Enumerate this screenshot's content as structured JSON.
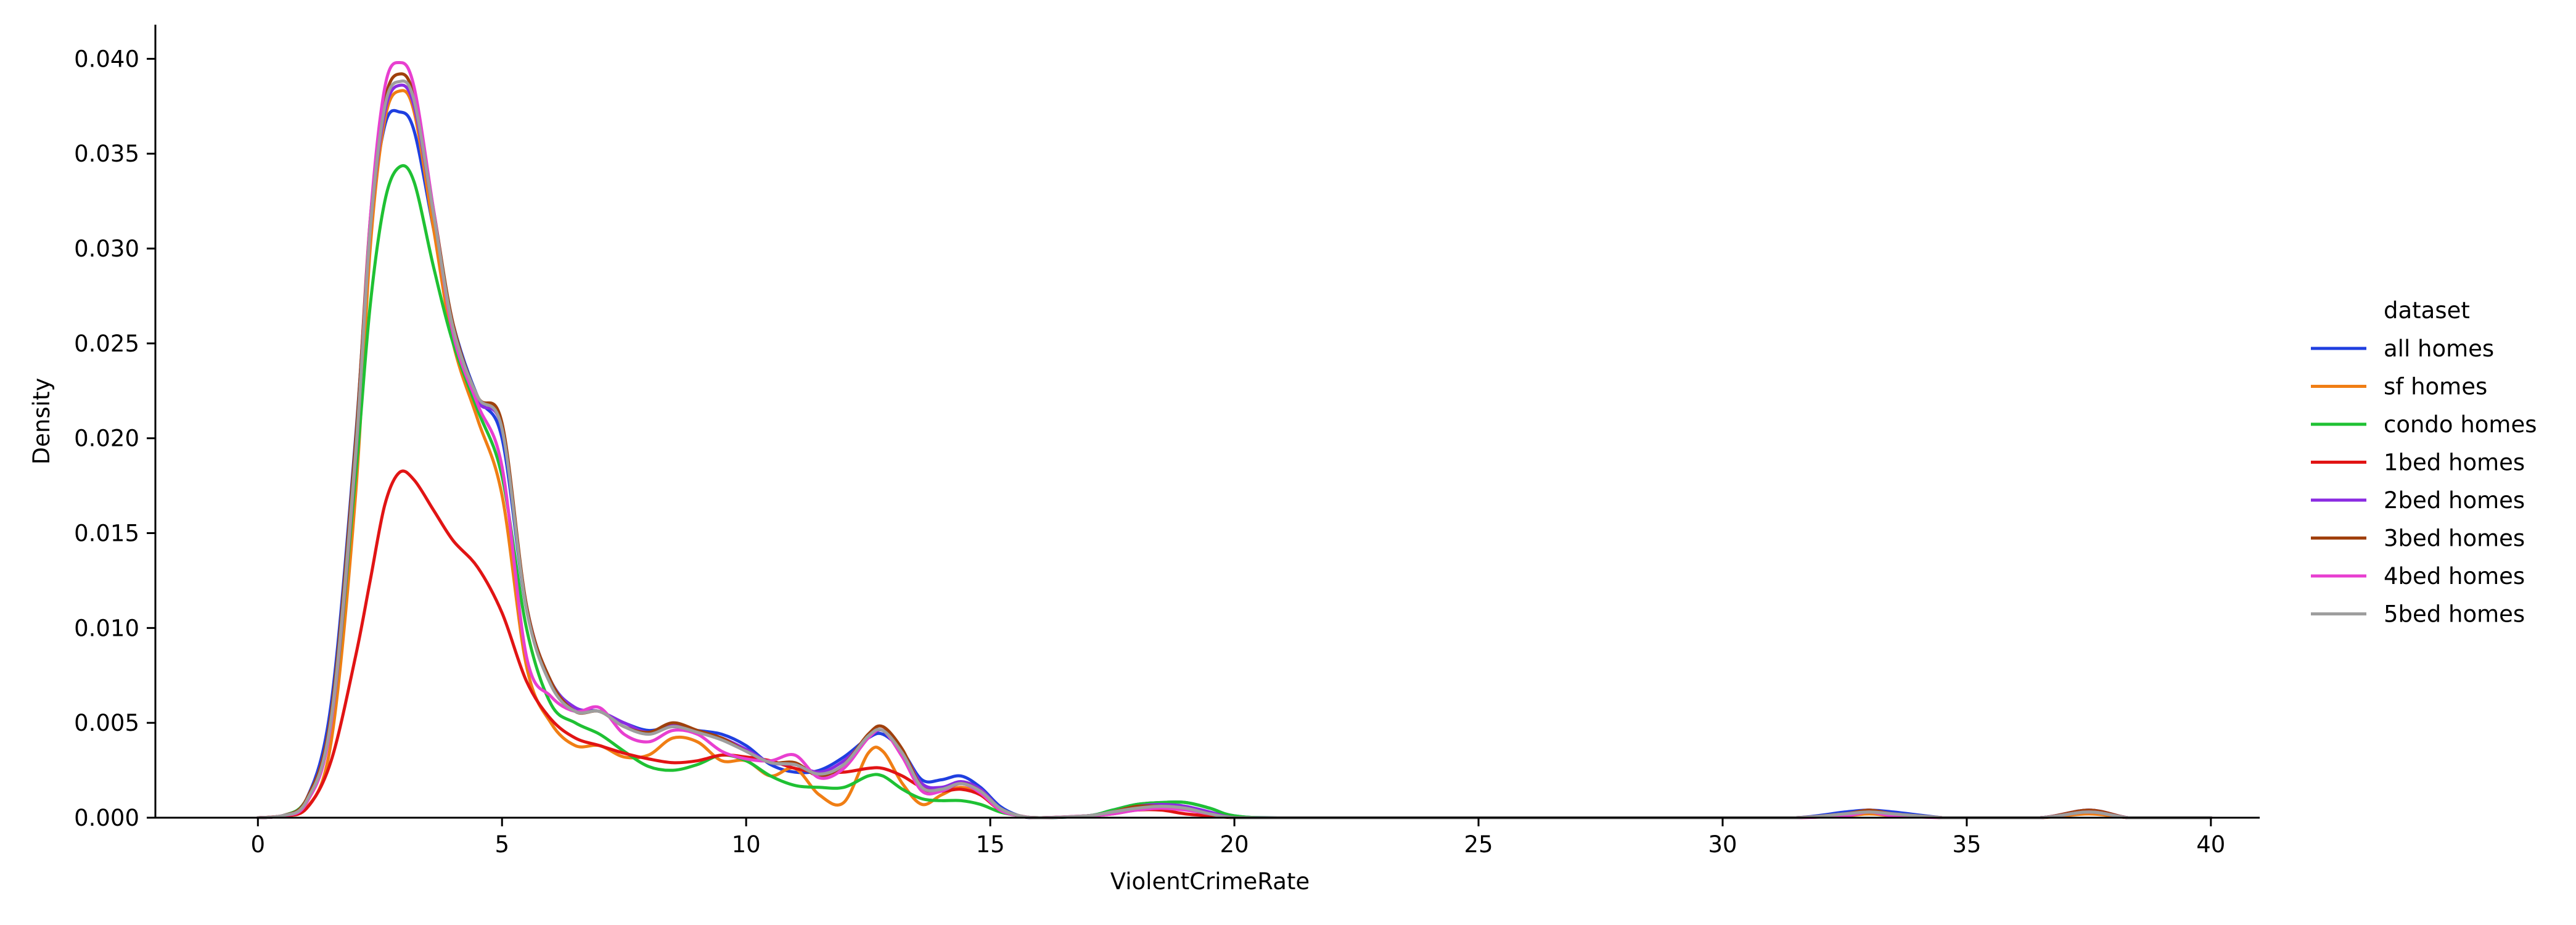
{
  "chart_data": {
    "type": "line",
    "title": "",
    "xlabel": "ViolentCrimeRate",
    "ylabel": "Density",
    "xlim": [
      -2.1,
      41.0
    ],
    "ylim": [
      0,
      0.0418
    ],
    "xticks": [
      0,
      5,
      10,
      15,
      20,
      25,
      30,
      35,
      40
    ],
    "yticks": [
      0.0,
      0.005,
      0.01,
      0.015,
      0.02,
      0.025,
      0.03,
      0.035,
      0.04
    ],
    "ytick_labels": [
      "0.000",
      "0.005",
      "0.010",
      "0.015",
      "0.020",
      "0.025",
      "0.030",
      "0.035",
      "0.040"
    ],
    "grid": false,
    "legend": {
      "title": "dataset",
      "placement": "right-outside"
    },
    "series": [
      {
        "name": "all homes",
        "color": "#1f3fe0",
        "x": [
          0,
          0.5,
          1.0,
          1.5,
          2.0,
          2.3,
          2.6,
          2.9,
          3.2,
          3.6,
          4.0,
          4.5,
          5.0,
          5.5,
          6.0,
          6.5,
          7.0,
          7.5,
          8.0,
          8.5,
          9.0,
          9.5,
          10.0,
          10.5,
          11.0,
          11.5,
          12.0,
          12.5,
          12.8,
          13.2,
          13.6,
          14.0,
          14.4,
          14.8,
          15.2,
          15.6,
          16.0,
          17.0,
          17.5,
          18.0,
          18.5,
          19.0,
          19.5,
          20.0,
          21,
          25,
          30,
          31.5,
          32.5,
          33.0,
          33.5,
          34.5,
          35,
          36.5,
          37.5,
          38.3,
          39,
          40
        ],
        "y": [
          0.0,
          0.0001,
          0.001,
          0.006,
          0.02,
          0.031,
          0.0365,
          0.0372,
          0.0362,
          0.031,
          0.026,
          0.0222,
          0.02,
          0.011,
          0.0072,
          0.0058,
          0.0056,
          0.005,
          0.0046,
          0.0048,
          0.0046,
          0.0044,
          0.0038,
          0.0028,
          0.0024,
          0.0025,
          0.0032,
          0.0042,
          0.0044,
          0.0035,
          0.002,
          0.002,
          0.0022,
          0.0016,
          0.0006,
          0.0001,
          0.0,
          0.0001,
          0.0004,
          0.0007,
          0.0008,
          0.0008,
          0.0005,
          0.0001,
          0.0,
          0.0,
          0.0,
          0.0,
          0.0003,
          0.0004,
          0.0003,
          0.0,
          0.0,
          0.0,
          0.0004,
          0.0,
          0.0,
          0.0
        ]
      },
      {
        "name": "sf homes",
        "color": "#f07e14",
        "x": [
          0,
          0.5,
          1.0,
          1.5,
          2.0,
          2.3,
          2.6,
          2.9,
          3.2,
          3.6,
          4.0,
          4.5,
          5.0,
          5.5,
          6.0,
          6.5,
          7.0,
          7.5,
          8.0,
          8.5,
          9.0,
          9.5,
          10.0,
          10.5,
          11.0,
          11.5,
          12.0,
          12.5,
          12.8,
          13.2,
          13.6,
          14.0,
          14.4,
          14.8,
          15.2,
          15.6,
          16.0,
          17.0,
          17.5,
          18.0,
          18.5,
          19.0,
          19.5,
          20.0,
          21,
          25,
          30,
          31.5,
          32.5,
          33.0,
          33.5,
          34.5,
          35,
          36.5,
          37.5,
          38.3,
          39,
          40
        ],
        "y": [
          0.0,
          0.0001,
          0.0005,
          0.004,
          0.017,
          0.03,
          0.0368,
          0.0383,
          0.0372,
          0.031,
          0.025,
          0.021,
          0.017,
          0.008,
          0.005,
          0.0038,
          0.0038,
          0.0032,
          0.0033,
          0.0042,
          0.004,
          0.003,
          0.003,
          0.0022,
          0.0026,
          0.0012,
          0.0008,
          0.0034,
          0.0035,
          0.0018,
          0.0007,
          0.0012,
          0.0016,
          0.0012,
          0.0004,
          0.0001,
          0.0,
          0.0001,
          0.0003,
          0.0005,
          0.0006,
          0.0005,
          0.0002,
          0.0,
          0.0,
          0.0,
          0.0,
          0.0,
          0.0001,
          0.0002,
          0.0001,
          0.0,
          0.0,
          0.0,
          0.0002,
          0.0,
          0.0,
          0.0
        ]
      },
      {
        "name": "condo homes",
        "color": "#1fc133",
        "x": [
          0,
          0.5,
          1.0,
          1.5,
          2.0,
          2.3,
          2.6,
          2.9,
          3.2,
          3.6,
          4.0,
          4.5,
          5.0,
          5.5,
          6.0,
          6.5,
          7.0,
          7.5,
          8.0,
          8.5,
          9.0,
          9.5,
          10.0,
          10.5,
          11.0,
          11.5,
          12.0,
          12.5,
          12.8,
          13.2,
          13.6,
          14.0,
          14.4,
          14.8,
          15.2,
          15.6,
          16.0,
          17.0,
          17.5,
          18.0,
          18.5,
          19.0,
          19.5,
          20.0,
          21,
          25,
          30,
          31.5,
          32.5,
          33.0,
          33.5,
          34.5,
          35,
          36.5,
          37.5,
          38.3,
          39,
          40
        ],
        "y": [
          0.0,
          0.0001,
          0.001,
          0.005,
          0.018,
          0.027,
          0.0325,
          0.0343,
          0.0335,
          0.029,
          0.025,
          0.0215,
          0.018,
          0.01,
          0.006,
          0.005,
          0.0044,
          0.0035,
          0.0027,
          0.0025,
          0.0028,
          0.0033,
          0.003,
          0.0022,
          0.0017,
          0.0016,
          0.0016,
          0.0022,
          0.0022,
          0.0015,
          0.001,
          0.0009,
          0.0009,
          0.0007,
          0.0003,
          0.0001,
          0.0,
          0.0001,
          0.0004,
          0.0007,
          0.0008,
          0.0008,
          0.0005,
          0.0001,
          0.0,
          0.0,
          0.0,
          0.0,
          0.0002,
          0.0003,
          0.0002,
          0.0,
          0.0,
          0.0,
          0.0003,
          0.0,
          0.0,
          0.0
        ]
      },
      {
        "name": "1bed homes",
        "color": "#e11414",
        "x": [
          0,
          0.5,
          1.0,
          1.5,
          2.0,
          2.3,
          2.6,
          2.9,
          3.2,
          3.6,
          4.0,
          4.5,
          5.0,
          5.5,
          6.0,
          6.5,
          7.0,
          7.5,
          8.0,
          8.5,
          9.0,
          9.5,
          10.0,
          10.5,
          11.0,
          11.5,
          12.0,
          12.5,
          12.8,
          13.2,
          13.6,
          14.0,
          14.4,
          14.8,
          15.2,
          15.6,
          16.0,
          17.0,
          17.5,
          18.0,
          18.5,
          19.0,
          19.5,
          20.0,
          21,
          25,
          30,
          31.5,
          32.5,
          33.0,
          33.5,
          34.5,
          35,
          36.5,
          37.5,
          38.3,
          39,
          40
        ],
        "y": [
          0.0,
          0.0001,
          0.0005,
          0.003,
          0.0085,
          0.0125,
          0.0165,
          0.0182,
          0.0178,
          0.0162,
          0.0146,
          0.0132,
          0.0108,
          0.0072,
          0.0052,
          0.0042,
          0.0038,
          0.0034,
          0.0031,
          0.0029,
          0.003,
          0.0033,
          0.0032,
          0.003,
          0.0026,
          0.0024,
          0.0024,
          0.0026,
          0.0026,
          0.0022,
          0.0016,
          0.0014,
          0.0015,
          0.0012,
          0.0004,
          0.0001,
          0.0,
          0.0001,
          0.0002,
          0.0004,
          0.0004,
          0.0002,
          0.0001,
          0.0,
          0.0,
          0.0,
          0.0,
          0.0,
          0.0002,
          0.0003,
          0.0002,
          0.0,
          0.0,
          0.0,
          0.0003,
          0.0,
          0.0,
          0.0
        ]
      },
      {
        "name": "2bed homes",
        "color": "#8a2be2",
        "x": [
          0,
          0.5,
          1.0,
          1.5,
          2.0,
          2.3,
          2.6,
          2.9,
          3.2,
          3.6,
          4.0,
          4.5,
          5.0,
          5.5,
          6.0,
          6.5,
          7.0,
          7.5,
          8.0,
          8.5,
          9.0,
          9.5,
          10.0,
          10.5,
          11.0,
          11.5,
          12.0,
          12.5,
          12.8,
          13.2,
          13.6,
          14.0,
          14.4,
          14.8,
          15.2,
          15.6,
          16.0,
          17.0,
          17.5,
          18.0,
          18.5,
          19.0,
          19.5,
          20.0,
          21,
          25,
          30,
          31.5,
          32.5,
          33.0,
          33.5,
          34.5,
          35,
          36.5,
          37.5,
          38.3,
          39,
          40
        ],
        "y": [
          0.0,
          0.0001,
          0.001,
          0.0055,
          0.0195,
          0.031,
          0.0372,
          0.0386,
          0.0375,
          0.0318,
          0.026,
          0.022,
          0.0205,
          0.0112,
          0.0072,
          0.0058,
          0.0056,
          0.005,
          0.0045,
          0.0049,
          0.0045,
          0.0042,
          0.0036,
          0.0029,
          0.0028,
          0.0024,
          0.003,
          0.0042,
          0.0046,
          0.0035,
          0.0018,
          0.0016,
          0.0019,
          0.0015,
          0.0005,
          0.0001,
          0.0,
          0.0001,
          0.0003,
          0.0006,
          0.0007,
          0.0006,
          0.0003,
          0.0,
          0.0,
          0.0,
          0.0,
          0.0,
          0.0002,
          0.0004,
          0.0002,
          0.0,
          0.0,
          0.0,
          0.0004,
          0.0,
          0.0,
          0.0
        ]
      },
      {
        "name": "3bed homes",
        "color": "#a0400c",
        "x": [
          0,
          0.5,
          1.0,
          1.5,
          2.0,
          2.3,
          2.6,
          2.9,
          3.2,
          3.6,
          4.0,
          4.5,
          5.0,
          5.5,
          6.0,
          6.5,
          7.0,
          7.5,
          8.0,
          8.5,
          9.0,
          9.5,
          10.0,
          10.5,
          11.0,
          11.5,
          12.0,
          12.5,
          12.8,
          13.2,
          13.6,
          14.0,
          14.4,
          14.8,
          15.2,
          15.6,
          16.0,
          17.0,
          17.5,
          18.0,
          18.5,
          19.0,
          19.5,
          20.0,
          21,
          25,
          30,
          31.5,
          32.5,
          33.0,
          33.5,
          34.5,
          35,
          36.5,
          37.5,
          38.3,
          39,
          40
        ],
        "y": [
          0.0,
          0.0001,
          0.001,
          0.0055,
          0.0198,
          0.0315,
          0.0378,
          0.0392,
          0.038,
          0.032,
          0.026,
          0.0222,
          0.0208,
          0.0112,
          0.0072,
          0.0056,
          0.0056,
          0.0048,
          0.0045,
          0.005,
          0.0046,
          0.0042,
          0.0035,
          0.0029,
          0.0029,
          0.0022,
          0.0028,
          0.0044,
          0.0048,
          0.0036,
          0.0016,
          0.0014,
          0.0018,
          0.0014,
          0.0005,
          0.0001,
          0.0,
          0.0001,
          0.0003,
          0.0006,
          0.0006,
          0.0005,
          0.0002,
          0.0,
          0.0,
          0.0,
          0.0,
          0.0,
          0.0002,
          0.0004,
          0.0002,
          0.0,
          0.0,
          0.0,
          0.0004,
          0.0,
          0.0,
          0.0
        ]
      },
      {
        "name": "4bed homes",
        "color": "#e83fd0",
        "x": [
          0,
          0.5,
          1.0,
          1.5,
          2.0,
          2.3,
          2.6,
          2.9,
          3.2,
          3.6,
          4.0,
          4.5,
          5.0,
          5.5,
          6.0,
          6.5,
          7.0,
          7.5,
          8.0,
          8.5,
          9.0,
          9.5,
          10.0,
          10.5,
          11.0,
          11.5,
          12.0,
          12.5,
          12.8,
          13.2,
          13.6,
          14.0,
          14.4,
          14.8,
          15.2,
          15.6,
          16.0,
          17.0,
          17.5,
          18.0,
          18.5,
          19.0,
          19.5,
          20.0,
          21,
          25,
          30,
          31.5,
          32.5,
          33.0,
          33.5,
          34.5,
          35,
          36.5,
          37.5,
          38.3,
          39,
          40
        ],
        "y": [
          0.0,
          0.0001,
          0.0008,
          0.005,
          0.019,
          0.0315,
          0.0385,
          0.0398,
          0.0385,
          0.032,
          0.0255,
          0.0218,
          0.0185,
          0.0085,
          0.0064,
          0.0056,
          0.0058,
          0.0044,
          0.004,
          0.0046,
          0.0044,
          0.0035,
          0.0031,
          0.003,
          0.0033,
          0.0021,
          0.0026,
          0.0042,
          0.0046,
          0.0032,
          0.0014,
          0.0014,
          0.0018,
          0.0013,
          0.0004,
          0.0001,
          0.0,
          0.0001,
          0.0002,
          0.0004,
          0.0005,
          0.0004,
          0.0002,
          0.0,
          0.0,
          0.0,
          0.0,
          0.0,
          0.0001,
          0.0003,
          0.0001,
          0.0,
          0.0,
          0.0,
          0.0003,
          0.0,
          0.0,
          0.0
        ]
      },
      {
        "name": "5bed homes",
        "color": "#9e9e9e",
        "x": [
          0,
          0.5,
          1.0,
          1.5,
          2.0,
          2.3,
          2.6,
          2.9,
          3.2,
          3.6,
          4.0,
          4.5,
          5.0,
          5.5,
          6.0,
          6.5,
          7.0,
          7.5,
          8.0,
          8.5,
          9.0,
          9.5,
          10.0,
          10.5,
          11.0,
          11.5,
          12.0,
          12.5,
          12.8,
          13.2,
          13.6,
          14.0,
          14.4,
          14.8,
          15.2,
          15.6,
          16.0,
          17.0,
          17.5,
          18.0,
          18.5,
          19.0,
          19.5,
          20.0,
          21,
          25,
          30,
          31.5,
          32.5,
          33.0,
          33.5,
          34.5,
          35,
          36.5,
          37.5,
          38.3,
          39,
          40
        ],
        "y": [
          0.0,
          0.0001,
          0.0009,
          0.0052,
          0.0192,
          0.031,
          0.0375,
          0.0388,
          0.0378,
          0.0318,
          0.0258,
          0.0222,
          0.0205,
          0.011,
          0.007,
          0.0056,
          0.0056,
          0.0048,
          0.0044,
          0.0048,
          0.0045,
          0.0041,
          0.0035,
          0.0029,
          0.0028,
          0.0023,
          0.0028,
          0.0043,
          0.0046,
          0.0034,
          0.0016,
          0.0015,
          0.0018,
          0.0014,
          0.0005,
          0.0001,
          0.0,
          0.0001,
          0.0003,
          0.0005,
          0.0006,
          0.0005,
          0.0002,
          0.0,
          0.0,
          0.0,
          0.0,
          0.0,
          0.0002,
          0.0003,
          0.0002,
          0.0,
          0.0,
          0.0,
          0.0003,
          0.0,
          0.0,
          0.0
        ]
      }
    ]
  }
}
